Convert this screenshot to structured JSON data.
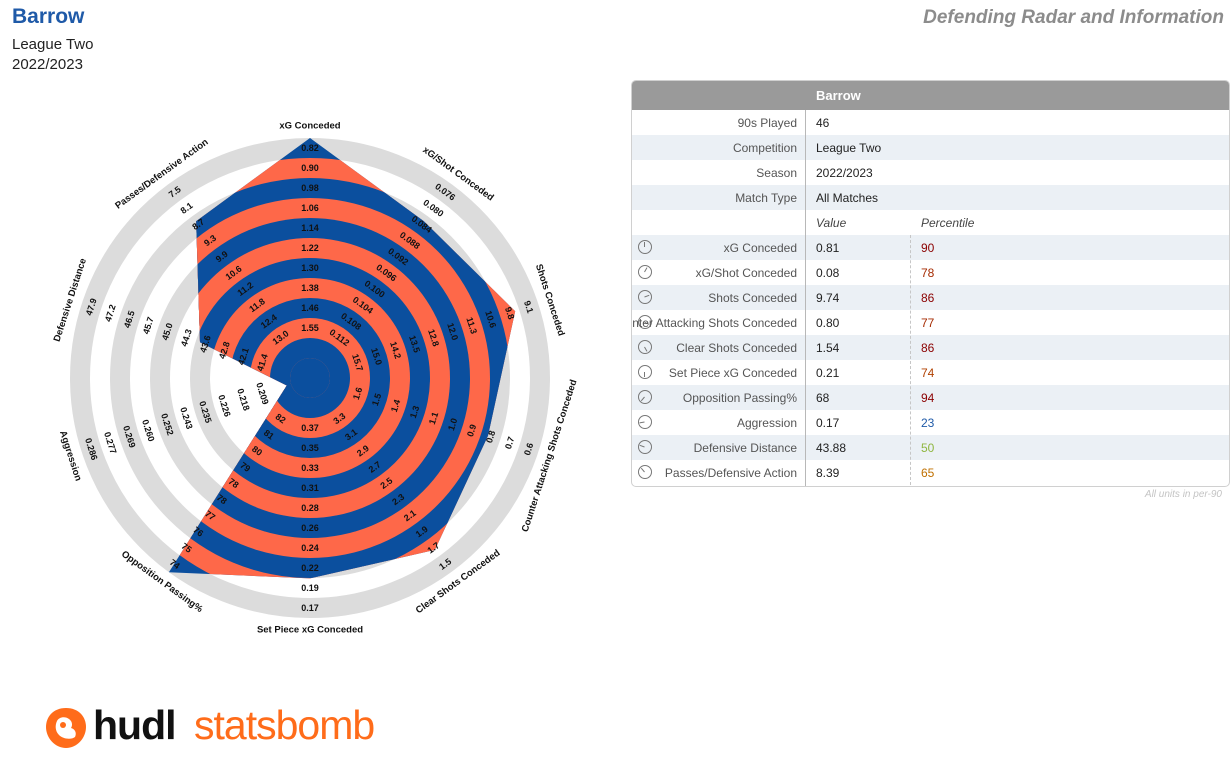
{
  "header": {
    "team": "Barrow",
    "competition": "League Two",
    "season": "2022/2023",
    "report_title": "Defending Radar and Information"
  },
  "colors": {
    "fill_orange": "#fe6849",
    "fill_blue": "#0b4f9e",
    "ring_grey": "#dcdcdc",
    "header_blue": "#1f5aa8"
  },
  "chart_data": {
    "type": "radar",
    "center_max_lo": 1.55,
    "axes": [
      {
        "name": "xG Conceded",
        "ticks": [
          "0.82",
          "0.90",
          "0.98",
          "1.06",
          "1.14",
          "1.22",
          "1.30",
          "1.38",
          "1.46",
          "1.55"
        ],
        "value": 0.81,
        "display_r": 1.0
      },
      {
        "name": "xG/Shot Conceded",
        "ticks": [
          "0.076",
          "0.080",
          "0.084",
          "0.088",
          "0.092",
          "0.096",
          "0.100",
          "0.104",
          "0.108",
          "0.112"
        ],
        "value": 0.08,
        "display_r": 0.79
      },
      {
        "name": "Shots Conceded",
        "ticks": [
          "9.1",
          "9.8",
          "10.6",
          "11.3",
          "12.0",
          "12.8",
          "13.5",
          "14.2",
          "15.0",
          "15.7"
        ],
        "value": 9.74,
        "display_r": 0.89
      },
      {
        "name": "Counter Attacking Shots Conceded",
        "ticks": [
          "0.6",
          "0.7",
          "0.8",
          "0.9",
          "1.0",
          "1.1",
          "1.3",
          "1.4",
          "1.5",
          "1.6"
        ],
        "value": 0.8,
        "display_r": 0.76
      },
      {
        "name": "Clear Shots Conceded",
        "ticks": [
          "1.5",
          "1.7",
          "1.9",
          "2.1",
          "2.3",
          "2.5",
          "2.7",
          "2.9",
          "3.1",
          "3.3"
        ],
        "value": 1.54,
        "display_r": 0.875
      },
      {
        "name": "Set Piece xG Conceded",
        "ticks": [
          "0.17",
          "0.19",
          "0.22",
          "0.24",
          "0.26",
          "0.28",
          "0.31",
          "0.33",
          "0.35",
          "0.37"
        ],
        "value": 0.21,
        "display_r": 0.82
      },
      {
        "name": "Opposition Passing%",
        "ticks": [
          "74",
          "75",
          "76",
          "77",
          "78",
          "78",
          "79",
          "80",
          "81",
          "82"
        ],
        "value": 68,
        "display_r": 1.0
      },
      {
        "name": "Aggression",
        "ticks": [
          "0.286",
          "0.277",
          "0.269",
          "0.260",
          "0.252",
          "0.243",
          "0.235",
          "0.226",
          "0.218",
          "0.209"
        ],
        "value": 0.17,
        "display_r": 0.02
      },
      {
        "name": "Defensive Distance",
        "ticks": [
          "47.9",
          "47.2",
          "46.5",
          "45.7",
          "45.0",
          "44.3",
          "43.6",
          "42.8",
          "42.1",
          "41.4"
        ],
        "value": 43.88,
        "display_r": 0.435
      },
      {
        "name": "Passes/Defensive Action",
        "ticks": [
          "7.5",
          "8.1",
          "8.7",
          "9.3",
          "9.9",
          "10.6",
          "11.2",
          "11.8",
          "12.4",
          "13.0"
        ],
        "value": 8.39,
        "display_r": 0.79
      }
    ]
  },
  "table": {
    "header": "Barrow",
    "info": [
      {
        "label": "90s Played",
        "value": "46"
      },
      {
        "label": "Competition",
        "value": "League Two"
      },
      {
        "label": "Season",
        "value": "2022/2023"
      },
      {
        "label": "Match Type",
        "value": "All Matches"
      }
    ],
    "col_value": "Value",
    "col_percentile": "Percentile",
    "metrics": [
      {
        "label": "xG Conceded",
        "value": "0.81",
        "percentile": "90",
        "pcolor": "#8b0000",
        "icon": "xg-conceded-icon"
      },
      {
        "label": "xG/Shot Conceded",
        "value": "0.08",
        "percentile": "78",
        "pcolor": "#a52a00",
        "icon": "xg-shot-icon"
      },
      {
        "label": "Shots Conceded",
        "value": "9.74",
        "percentile": "86",
        "pcolor": "#8b0000",
        "icon": "shots-icon"
      },
      {
        "label": "Counter Attacking Shots Conceded",
        "value": "0.80",
        "percentile": "77",
        "pcolor": "#a52a00",
        "icon": "counter-icon"
      },
      {
        "label": "Clear Shots Conceded",
        "value": "1.54",
        "percentile": "86",
        "pcolor": "#8b0000",
        "icon": "clear-shots-icon"
      },
      {
        "label": "Set Piece xG Conceded",
        "value": "0.21",
        "percentile": "74",
        "pcolor": "#b04000",
        "icon": "set-piece-icon"
      },
      {
        "label": "Opposition Passing%",
        "value": "68",
        "percentile": "94",
        "pcolor": "#8b0000",
        "icon": "passing-icon"
      },
      {
        "label": "Aggression",
        "value": "0.17",
        "percentile": "23",
        "pcolor": "#1f5aa8",
        "icon": "aggression-icon"
      },
      {
        "label": "Defensive Distance",
        "value": "43.88",
        "percentile": "50",
        "pcolor": "#8fb640",
        "icon": "distance-icon"
      },
      {
        "label": "Passes/Defensive Action",
        "value": "8.39",
        "percentile": "65",
        "pcolor": "#c07000",
        "icon": "ppda-icon"
      }
    ],
    "units_note": "All units in per-90"
  },
  "logo": {
    "hudl": "hudl",
    "statsbomb": "statsbomb"
  }
}
